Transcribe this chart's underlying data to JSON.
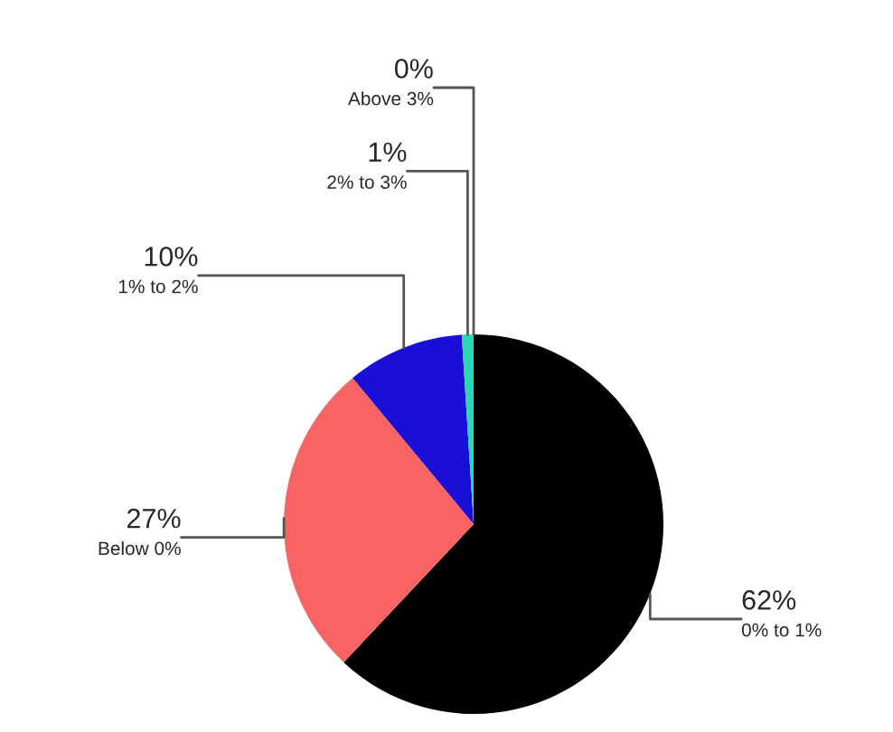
{
  "chart_data": {
    "type": "pie",
    "categories": [
      "0% to 1%",
      "Below 0%",
      "1% to 2%",
      "2% to 3%",
      "Above 3%"
    ],
    "values": [
      62,
      27,
      10,
      1,
      0
    ],
    "colors": [
      "#000000",
      "#f86464",
      "#1a0fd6",
      "#2ad7b5",
      "#888888"
    ],
    "value_labels": [
      "62%",
      "27%",
      "10%",
      "1%",
      "0%"
    ]
  }
}
